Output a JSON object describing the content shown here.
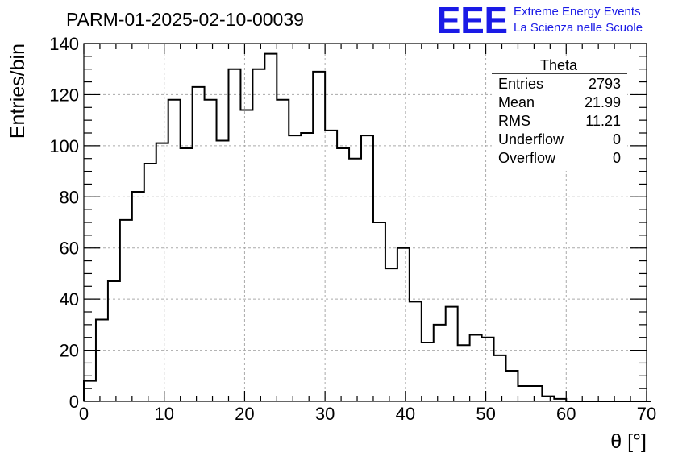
{
  "chart_data": {
    "type": "histogram",
    "title": "PARM-01-2025-02-10-00039",
    "xlabel": "θ [°]",
    "ylabel": "Entries/bin",
    "xlim": [
      0,
      70
    ],
    "ylim": [
      0,
      140
    ],
    "bin_width": 1.5,
    "x_ticks": [
      0,
      10,
      20,
      30,
      40,
      50,
      60,
      70
    ],
    "y_ticks": [
      0,
      20,
      40,
      60,
      80,
      100,
      120,
      140
    ],
    "grid": true,
    "values": [
      8,
      32,
      47,
      71,
      82,
      93,
      101,
      118,
      99,
      123,
      118,
      102,
      130,
      114,
      130,
      136,
      118,
      104,
      105,
      129,
      106,
      99,
      95,
      104,
      70,
      52,
      60,
      39,
      23,
      30,
      37,
      22,
      26,
      25,
      18,
      12,
      6,
      6,
      2,
      1,
      0,
      0,
      0,
      0,
      0,
      0,
      0
    ],
    "stats": {
      "name": "Theta",
      "rows": [
        {
          "label": "Entries",
          "value": "2793"
        },
        {
          "label": "Mean",
          "value": "21.99"
        },
        {
          "label": "RMS",
          "value": "11.21"
        },
        {
          "label": "Underflow",
          "value": "0"
        },
        {
          "label": "Overflow",
          "value": "0"
        }
      ]
    }
  },
  "logo": {
    "mark": "EEE",
    "line1": "Extreme Energy Events",
    "line2": "La Scienza nelle Scuole",
    "color": "#1a1ae6"
  }
}
